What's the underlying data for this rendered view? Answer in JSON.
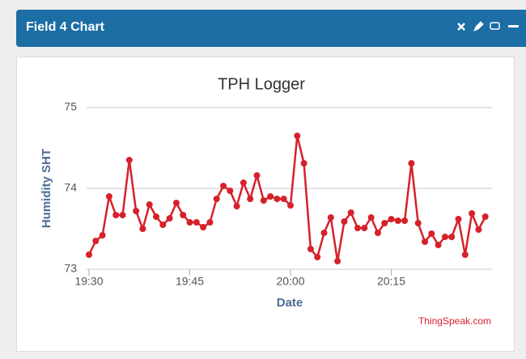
{
  "panel": {
    "title": "Field 4 Chart"
  },
  "chart_data": {
    "type": "line",
    "title": "TPH Logger",
    "xlabel": "Date",
    "ylabel": "Humidity SHT",
    "credit": "ThingSpeak.com",
    "x": [
      "19:30",
      "19:31",
      "19:32",
      "19:33",
      "19:34",
      "19:35",
      "19:36",
      "19:37",
      "19:38",
      "19:39",
      "19:40",
      "19:41",
      "19:42",
      "19:43",
      "19:44",
      "19:45",
      "19:46",
      "19:47",
      "19:48",
      "19:49",
      "19:50",
      "19:51",
      "19:52",
      "19:53",
      "19:54",
      "19:55",
      "19:56",
      "19:57",
      "19:58",
      "19:59",
      "20:00",
      "20:01",
      "20:02",
      "20:03",
      "20:04",
      "20:05",
      "20:06",
      "20:07",
      "20:08",
      "20:09",
      "20:10",
      "20:11",
      "20:12",
      "20:13",
      "20:14",
      "20:15",
      "20:16",
      "20:17",
      "20:18",
      "20:19",
      "20:20",
      "20:21",
      "20:22",
      "20:23",
      "20:24",
      "20:25",
      "20:26",
      "20:27",
      "20:28",
      "20:29"
    ],
    "series": [
      {
        "name": "Humidity SHT",
        "color": "#d6212b",
        "values": [
          73.18,
          73.35,
          73.42,
          73.9,
          73.67,
          73.67,
          74.35,
          73.72,
          73.5,
          73.8,
          73.65,
          73.55,
          73.63,
          73.82,
          73.67,
          73.58,
          73.58,
          73.52,
          73.58,
          73.87,
          74.03,
          73.97,
          73.78,
          74.07,
          73.87,
          74.16,
          73.85,
          73.9,
          73.87,
          73.87,
          73.79,
          74.65,
          74.31,
          73.25,
          73.15,
          73.45,
          73.64,
          73.1,
          73.59,
          73.7,
          73.51,
          73.51,
          73.64,
          73.45,
          73.57,
          73.62,
          73.6,
          73.6,
          74.31,
          73.57,
          73.34,
          73.44,
          73.3,
          73.4,
          73.4,
          73.62,
          73.18,
          73.69,
          73.49,
          73.65
        ]
      }
    ],
    "xlim": [
      "19:30",
      "20:30"
    ],
    "xticks": [
      "19:30",
      "19:45",
      "20:00",
      "20:15"
    ],
    "ylim": [
      73,
      75
    ],
    "yticks": [
      73,
      74,
      75
    ],
    "grid": true
  }
}
